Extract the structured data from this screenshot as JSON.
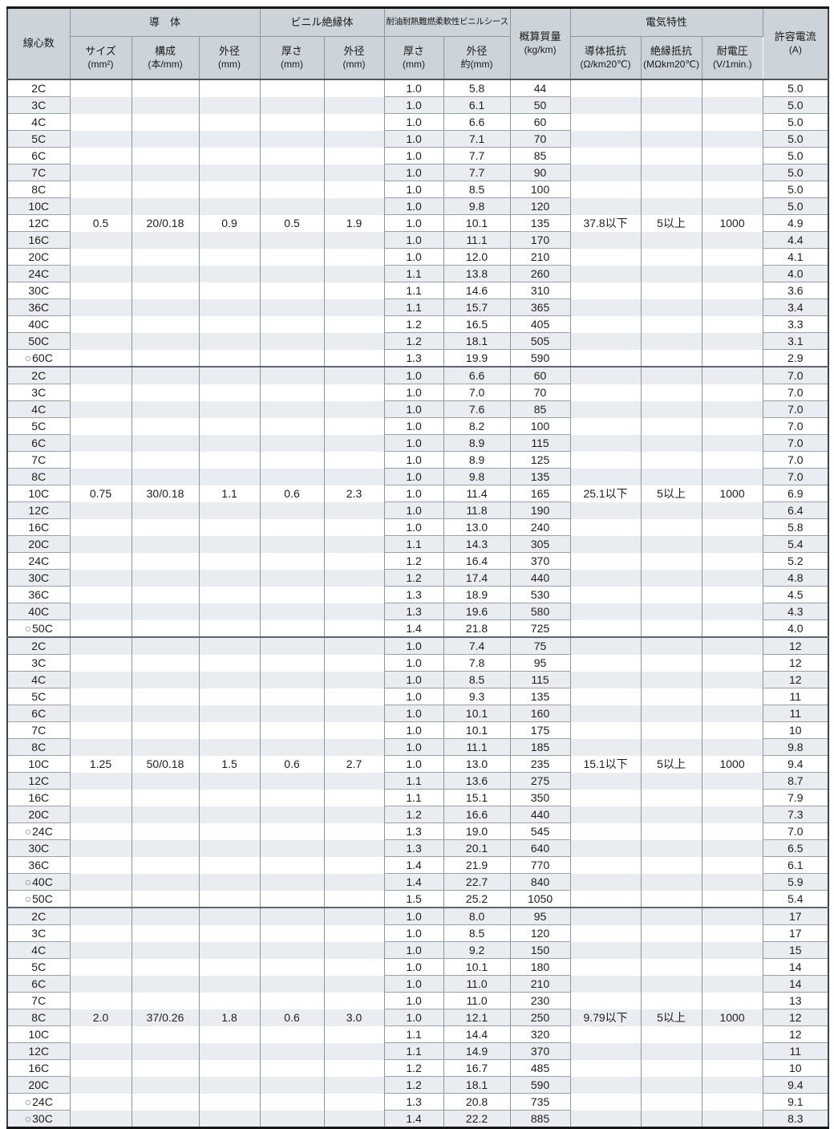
{
  "marks": {
    "circle": "○"
  },
  "columns": {
    "cores": {
      "label": "線心数"
    },
    "groups": {
      "conductor": "導　体",
      "insulation": "ビニル絶縁体",
      "sheath": "耐油耐熱難燃柔軟性ビニルシース",
      "electrical": "電気特性"
    },
    "conductor_size": {
      "label": "サイズ",
      "unit": "(mm²)"
    },
    "conductor_strand": {
      "label": "構成",
      "unit": "(本/mm)"
    },
    "conductor_od": {
      "label": "外径",
      "unit": "(mm)"
    },
    "insulation_thickness": {
      "label": "厚さ",
      "unit": "(mm)"
    },
    "insulation_od": {
      "label": "外径",
      "unit": "(mm)"
    },
    "sheath_thickness": {
      "label": "厚さ",
      "unit": "(mm)"
    },
    "sheath_od": {
      "label": "外径",
      "unit": "約(mm)"
    },
    "mass": {
      "label": "概算質量",
      "unit": "(kg/km)"
    },
    "conductor_resistance": {
      "label": "導体抵抗",
      "unit": "(Ω/km20℃)"
    },
    "insulation_resistance": {
      "label": "絶縁抵抗",
      "unit": "(MΩkm20℃)"
    },
    "withstand_voltage": {
      "label": "耐電圧",
      "unit": "(V/1min.)"
    },
    "current": {
      "label": "許容電流",
      "unit": "(A)"
    }
  },
  "sections": [
    {
      "conductor": {
        "size": "0.5",
        "strand": "20/0.18",
        "od": "0.9"
      },
      "insulation": {
        "thickness": "0.5",
        "od": "1.9"
      },
      "electrical": {
        "conductor_resistance": "37.8以下",
        "insulation_resistance": "5以上",
        "withstand_voltage": "1000"
      },
      "spec_row": 8,
      "rows": [
        [
          "2C",
          0,
          "1.0",
          "5.8",
          "44",
          "5.0"
        ],
        [
          "3C",
          0,
          "1.0",
          "6.1",
          "50",
          "5.0"
        ],
        [
          "4C",
          0,
          "1.0",
          "6.6",
          "60",
          "5.0"
        ],
        [
          "5C",
          0,
          "1.0",
          "7.1",
          "70",
          "5.0"
        ],
        [
          "6C",
          0,
          "1.0",
          "7.7",
          "85",
          "5.0"
        ],
        [
          "7C",
          0,
          "1.0",
          "7.7",
          "90",
          "5.0"
        ],
        [
          "8C",
          0,
          "1.0",
          "8.5",
          "100",
          "5.0"
        ],
        [
          "10C",
          0,
          "1.0",
          "9.8",
          "120",
          "5.0"
        ],
        [
          "12C",
          0,
          "1.0",
          "10.1",
          "135",
          "4.9"
        ],
        [
          "16C",
          0,
          "1.0",
          "11.1",
          "170",
          "4.4"
        ],
        [
          "20C",
          0,
          "1.0",
          "12.0",
          "210",
          "4.1"
        ],
        [
          "24C",
          0,
          "1.1",
          "13.8",
          "260",
          "4.0"
        ],
        [
          "30C",
          0,
          "1.1",
          "14.6",
          "310",
          "3.6"
        ],
        [
          "36C",
          0,
          "1.1",
          "15.7",
          "365",
          "3.4"
        ],
        [
          "40C",
          0,
          "1.2",
          "16.5",
          "405",
          "3.3"
        ],
        [
          "50C",
          0,
          "1.2",
          "18.1",
          "505",
          "3.1"
        ],
        [
          "60C",
          1,
          "1.3",
          "19.9",
          "590",
          "2.9"
        ]
      ]
    },
    {
      "conductor": {
        "size": "0.75",
        "strand": "30/0.18",
        "od": "1.1"
      },
      "insulation": {
        "thickness": "0.6",
        "od": "2.3"
      },
      "electrical": {
        "conductor_resistance": "25.1以下",
        "insulation_resistance": "5以上",
        "withstand_voltage": "1000"
      },
      "spec_row": 7,
      "rows": [
        [
          "2C",
          0,
          "1.0",
          "6.6",
          "60",
          "7.0"
        ],
        [
          "3C",
          0,
          "1.0",
          "7.0",
          "70",
          "7.0"
        ],
        [
          "4C",
          0,
          "1.0",
          "7.6",
          "85",
          "7.0"
        ],
        [
          "5C",
          0,
          "1.0",
          "8.2",
          "100",
          "7.0"
        ],
        [
          "6C",
          0,
          "1.0",
          "8.9",
          "115",
          "7.0"
        ],
        [
          "7C",
          0,
          "1.0",
          "8.9",
          "125",
          "7.0"
        ],
        [
          "8C",
          0,
          "1.0",
          "9.8",
          "135",
          "7.0"
        ],
        [
          "10C",
          0,
          "1.0",
          "11.4",
          "165",
          "6.9"
        ],
        [
          "12C",
          0,
          "1.0",
          "11.8",
          "190",
          "6.4"
        ],
        [
          "16C",
          0,
          "1.0",
          "13.0",
          "240",
          "5.8"
        ],
        [
          "20C",
          0,
          "1.1",
          "14.3",
          "305",
          "5.4"
        ],
        [
          "24C",
          0,
          "1.2",
          "16.4",
          "370",
          "5.2"
        ],
        [
          "30C",
          0,
          "1.2",
          "17.4",
          "440",
          "4.8"
        ],
        [
          "36C",
          0,
          "1.3",
          "18.9",
          "530",
          "4.5"
        ],
        [
          "40C",
          0,
          "1.3",
          "19.6",
          "580",
          "4.3"
        ],
        [
          "50C",
          1,
          "1.4",
          "21.8",
          "725",
          "4.0"
        ]
      ]
    },
    {
      "conductor": {
        "size": "1.25",
        "strand": "50/0.18",
        "od": "1.5"
      },
      "insulation": {
        "thickness": "0.6",
        "od": "2.7"
      },
      "electrical": {
        "conductor_resistance": "15.1以下",
        "insulation_resistance": "5以上",
        "withstand_voltage": "1000"
      },
      "spec_row": 7,
      "rows": [
        [
          "2C",
          0,
          "1.0",
          "7.4",
          "75",
          "12"
        ],
        [
          "3C",
          0,
          "1.0",
          "7.8",
          "95",
          "12"
        ],
        [
          "4C",
          0,
          "1.0",
          "8.5",
          "115",
          "12"
        ],
        [
          "5C",
          0,
          "1.0",
          "9.3",
          "135",
          "11"
        ],
        [
          "6C",
          0,
          "1.0",
          "10.1",
          "160",
          "11"
        ],
        [
          "7C",
          0,
          "1.0",
          "10.1",
          "175",
          "10"
        ],
        [
          "8C",
          0,
          "1.0",
          "11.1",
          "185",
          "9.8"
        ],
        [
          "10C",
          0,
          "1.0",
          "13.0",
          "235",
          "9.4"
        ],
        [
          "12C",
          0,
          "1.1",
          "13.6",
          "275",
          "8.7"
        ],
        [
          "16C",
          0,
          "1.1",
          "15.1",
          "350",
          "7.9"
        ],
        [
          "20C",
          0,
          "1.2",
          "16.6",
          "440",
          "7.3"
        ],
        [
          "24C",
          1,
          "1.3",
          "19.0",
          "545",
          "7.0"
        ],
        [
          "30C",
          0,
          "1.3",
          "20.1",
          "640",
          "6.5"
        ],
        [
          "36C",
          0,
          "1.4",
          "21.9",
          "770",
          "6.1"
        ],
        [
          "40C",
          1,
          "1.4",
          "22.7",
          "840",
          "5.9"
        ],
        [
          "50C",
          1,
          "1.5",
          "25.2",
          "1050",
          "5.4"
        ]
      ]
    },
    {
      "conductor": {
        "size": "2.0",
        "strand": "37/0.26",
        "od": "1.8"
      },
      "insulation": {
        "thickness": "0.6",
        "od": "3.0"
      },
      "electrical": {
        "conductor_resistance": "9.79以下",
        "insulation_resistance": "5以上",
        "withstand_voltage": "1000"
      },
      "spec_row": 6,
      "rows": [
        [
          "2C",
          0,
          "1.0",
          "8.0",
          "95",
          "17"
        ],
        [
          "3C",
          0,
          "1.0",
          "8.5",
          "120",
          "17"
        ],
        [
          "4C",
          0,
          "1.0",
          "9.2",
          "150",
          "15"
        ],
        [
          "5C",
          0,
          "1.0",
          "10.1",
          "180",
          "14"
        ],
        [
          "6C",
          0,
          "1.0",
          "11.0",
          "210",
          "14"
        ],
        [
          "7C",
          0,
          "1.0",
          "11.0",
          "230",
          "13"
        ],
        [
          "8C",
          0,
          "1.0",
          "12.1",
          "250",
          "12"
        ],
        [
          "10C",
          0,
          "1.1",
          "14.4",
          "320",
          "12"
        ],
        [
          "12C",
          0,
          "1.1",
          "14.9",
          "370",
          "11"
        ],
        [
          "16C",
          0,
          "1.2",
          "16.7",
          "485",
          "10"
        ],
        [
          "20C",
          0,
          "1.2",
          "18.1",
          "590",
          "9.4"
        ],
        [
          "24C",
          1,
          "1.3",
          "20.8",
          "735",
          "9.1"
        ],
        [
          "30C",
          1,
          "1.4",
          "22.2",
          "885",
          "8.3"
        ]
      ]
    }
  ]
}
